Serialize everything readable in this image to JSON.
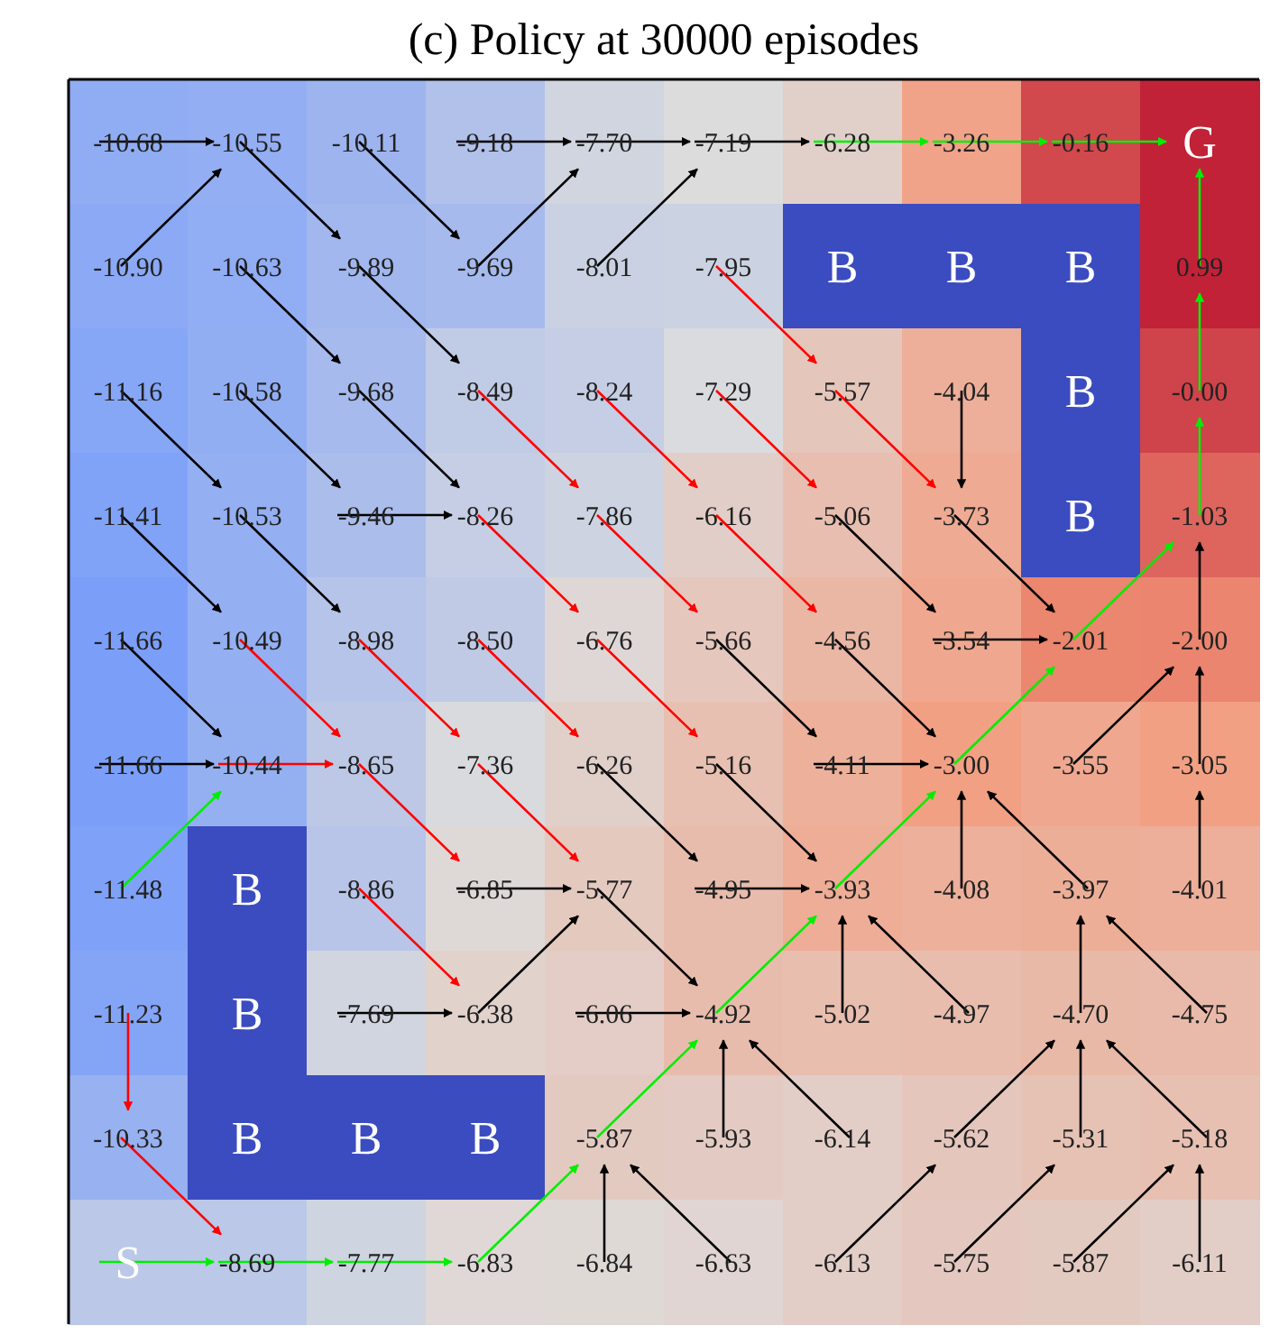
{
  "chart_data": {
    "type": "heatmap",
    "title": "(c) Policy at 30000 episodes",
    "categories": [
      null,
      null,
      null,
      null,
      null,
      null,
      null,
      null,
      null,
      null
    ],
    "y_categories": [
      null,
      null,
      null,
      null,
      null,
      null,
      null,
      null,
      null,
      null
    ],
    "tick_labels": false,
    "data_labels": true,
    "cells": [
      [
        -10.68,
        -10.55,
        -10.11,
        -9.18,
        -7.7,
        -7.19,
        -6.28,
        -3.26,
        -0.16,
        null
      ],
      [
        -10.9,
        -10.63,
        -9.89,
        -9.69,
        -8.01,
        -7.95,
        null,
        null,
        null,
        0.99
      ],
      [
        -11.16,
        -10.58,
        -9.68,
        -8.49,
        -8.24,
        -7.29,
        -5.57,
        -4.04,
        null,
        -0.0
      ],
      [
        -11.41,
        -10.53,
        -9.46,
        -8.26,
        -7.86,
        -6.16,
        -5.06,
        -3.73,
        null,
        -1.03
      ],
      [
        -11.66,
        -10.49,
        -8.98,
        -8.5,
        -6.76,
        -5.66,
        -4.56,
        -3.54,
        -2.01,
        -2.0
      ],
      [
        -11.66,
        -10.44,
        -8.65,
        -7.36,
        -6.26,
        -5.16,
        -4.11,
        -3.0,
        -3.55,
        -3.05
      ],
      [
        -11.48,
        null,
        -8.86,
        -6.85,
        -5.77,
        -4.95,
        -3.93,
        -4.08,
        -3.97,
        -4.01
      ],
      [
        -11.23,
        null,
        -7.69,
        -6.38,
        -6.06,
        -4.92,
        -5.02,
        -4.97,
        -4.7,
        -4.75
      ],
      [
        -10.33,
        null,
        null,
        null,
        -5.87,
        -5.93,
        -6.14,
        -5.62,
        -5.31,
        -5.18
      ],
      [
        null,
        -8.69,
        -7.77,
        -6.83,
        -6.84,
        -6.63,
        -6.13,
        -5.75,
        -5.87,
        -6.11
      ]
    ],
    "cell_labels": [
      [
        "-10.68",
        "-10.55",
        "-10.11",
        "-9.18",
        "-7.70",
        "-7.19",
        "-6.28",
        "-3.26",
        "-0.16",
        "G"
      ],
      [
        "-10.90",
        "-10.63",
        "-9.89",
        "-9.69",
        "-8.01",
        "-7.95",
        "B",
        "B",
        "B",
        "0.99"
      ],
      [
        "-11.16",
        "-10.58",
        "-9.68",
        "-8.49",
        "-8.24",
        "-7.29",
        "-5.57",
        "-4.04",
        "B",
        "-0.00"
      ],
      [
        "-11.41",
        "-10.53",
        "-9.46",
        "-8.26",
        "-7.86",
        "-6.16",
        "-5.06",
        "-3.73",
        "B",
        "-1.03"
      ],
      [
        "-11.66",
        "-10.49",
        "-8.98",
        "-8.50",
        "-6.76",
        "-5.66",
        "-4.56",
        "-3.54",
        "-2.01",
        "-2.00"
      ],
      [
        "-11.66",
        "-10.44",
        "-8.65",
        "-7.36",
        "-6.26",
        "-5.16",
        "-4.11",
        "-3.00",
        "-3.55",
        "-3.05"
      ],
      [
        "-11.48",
        "B",
        "-8.86",
        "-6.85",
        "-5.77",
        "-4.95",
        "-3.93",
        "-4.08",
        "-3.97",
        "-4.01"
      ],
      [
        "-11.23",
        "B",
        "-7.69",
        "-6.38",
        "-6.06",
        "-4.92",
        "-5.02",
        "-4.97",
        "-4.70",
        "-4.75"
      ],
      [
        "-10.33",
        "B",
        "B",
        "B",
        "-5.87",
        "-5.93",
        "-6.14",
        "-5.62",
        "-5.31",
        "-5.18"
      ],
      [
        "S",
        "-8.69",
        "-7.77",
        "-6.83",
        "-6.84",
        "-6.63",
        "-6.13",
        "-5.75",
        "-5.87",
        "-6.11"
      ]
    ]
  }
}
